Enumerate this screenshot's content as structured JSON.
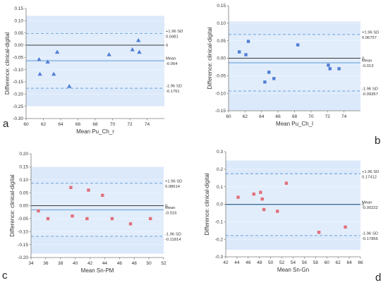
{
  "figure": {
    "panels": [
      "a",
      "b",
      "c",
      "d"
    ]
  },
  "colors": {
    "band": "#dce9fb",
    "bandInner": "#e8f0fc",
    "zero": "#3a3a3a",
    "mean": "#5b9bd5",
    "limit": "#5b9bd5",
    "blue_marker": "#4f7fd6",
    "red_marker": "#e0707a"
  },
  "chart_data": [
    {
      "panel_letter": "a",
      "type": "scatter",
      "marker": "triangle",
      "marker_color": "blue",
      "xlabel": "Mean Pu_Ch_r",
      "ylabel": "Difference: clinical-digital",
      "xlim": [
        60,
        76
      ],
      "ylim": [
        -0.3,
        0.15
      ],
      "xticks": [
        "60",
        "62",
        "64",
        "66",
        "68",
        "70",
        "72",
        "74"
      ],
      "yticks": [
        "0.15",
        "0.10",
        "0.05",
        "0.00",
        "-0.05",
        "-0.10",
        "-0.15",
        "-0.20",
        "-0.25",
        "-0.30"
      ],
      "band": [
        -0.25,
        0.12
      ],
      "lines": {
        "upper": 0.0481,
        "zero": 0,
        "mean": -0.064,
        "lower": -0.1761
      },
      "line_labels": {
        "upper_title": "+1.96 SD",
        "upper_value": "0.0481",
        "zero_value": "0",
        "mean_title": "Mean",
        "mean_value": "-0.064",
        "lower_title": "-1.96 SD",
        "lower_value": "-0.1761"
      },
      "points": [
        {
          "x": 61.5,
          "y": -0.058
        },
        {
          "x": 61.6,
          "y": -0.118
        },
        {
          "x": 62.5,
          "y": -0.068
        },
        {
          "x": 63.2,
          "y": -0.118
        },
        {
          "x": 63.6,
          "y": -0.028
        },
        {
          "x": 65.0,
          "y": -0.168
        },
        {
          "x": 69.6,
          "y": -0.038
        },
        {
          "x": 72.3,
          "y": -0.018
        },
        {
          "x": 73.0,
          "y": 0.02
        },
        {
          "x": 73.1,
          "y": -0.028
        }
      ]
    },
    {
      "panel_letter": "b",
      "type": "scatter",
      "marker": "square",
      "marker_color": "blue",
      "xlabel": "Mean Pu_Ch_l",
      "ylabel": "Difference: clinical-digital",
      "xlim": [
        60,
        76
      ],
      "ylim": [
        -0.15,
        0.15
      ],
      "xticks": [
        "60",
        "62",
        "64",
        "66",
        "68",
        "70",
        "72",
        "74"
      ],
      "yticks": [
        "0.15",
        "0.10",
        "0.05",
        "0.00",
        "-0.05",
        "-0.10",
        "-0.15"
      ],
      "band": [
        -0.15,
        0.105
      ],
      "lines": {
        "upper": 0.06757,
        "zero": 0,
        "mean": -0.013,
        "lower": -0.09357
      },
      "line_labels": {
        "upper_title": "+1.96 SD",
        "upper_value": "0.06757",
        "zero_value": "0",
        "mean_title": "Mean",
        "mean_value": "-0.013",
        "lower_title": "-1.96 SD",
        "lower_value": "-0.09357"
      },
      "points": [
        {
          "x": 61.3,
          "y": 0.018
        },
        {
          "x": 62.1,
          "y": 0.01
        },
        {
          "x": 62.4,
          "y": 0.048
        },
        {
          "x": 64.4,
          "y": -0.068
        },
        {
          "x": 64.9,
          "y": -0.04
        },
        {
          "x": 65.5,
          "y": -0.058
        },
        {
          "x": 68.4,
          "y": 0.038
        },
        {
          "x": 72.1,
          "y": -0.02
        },
        {
          "x": 72.3,
          "y": -0.03
        },
        {
          "x": 73.4,
          "y": -0.03
        }
      ]
    },
    {
      "panel_letter": "c",
      "type": "scatter",
      "marker": "square",
      "marker_color": "red",
      "xlabel": "Mean Sn-PM",
      "ylabel": "Difference: clinical-digital",
      "xlim": [
        34,
        52
      ],
      "ylim": [
        -0.2,
        0.2
      ],
      "xticks": [
        "34",
        "36",
        "38",
        "40",
        "42",
        "44",
        "46",
        "48",
        "50",
        "52"
      ],
      "yticks": [
        "0.20",
        "0.15",
        "0.10",
        "0.05",
        "0.00",
        "-0.05",
        "-0.10",
        "-0.15",
        "-0.20"
      ],
      "band": [
        -0.185,
        0.15
      ],
      "lines": {
        "upper": 0.08614,
        "zero": 0,
        "mean": -0.016,
        "lower": -0.11814
      },
      "line_labels": {
        "upper_title": "+1.96 SD",
        "upper_value": "0.08614",
        "zero_value": "0",
        "mean_title": "Mean",
        "mean_value": "-0.016",
        "lower_title": "-1.96 SD",
        "lower_value": "-0.11814"
      },
      "points": [
        {
          "x": 35.0,
          "y": -0.02
        },
        {
          "x": 36.3,
          "y": -0.05
        },
        {
          "x": 39.4,
          "y": 0.07
        },
        {
          "x": 39.6,
          "y": -0.04
        },
        {
          "x": 41.6,
          "y": -0.05
        },
        {
          "x": 41.8,
          "y": 0.06
        },
        {
          "x": 43.7,
          "y": 0.04
        },
        {
          "x": 45.0,
          "y": -0.05
        },
        {
          "x": 47.5,
          "y": -0.07
        },
        {
          "x": 50.2,
          "y": -0.05
        }
      ]
    },
    {
      "panel_letter": "d",
      "type": "scatter",
      "marker": "square",
      "marker_color": "red",
      "xlabel": "Mean Sn-Gn",
      "ylabel": "Difference: clinical-digital",
      "xlim": [
        42,
        66
      ],
      "ylim": [
        -0.3,
        0.3
      ],
      "xticks": [
        "42",
        "44",
        "46",
        "48",
        "50",
        "52",
        "54",
        "56",
        "58",
        "60",
        "62",
        "64",
        "66"
      ],
      "yticks": [
        "0.3",
        "0.2",
        "0.1",
        "0.0",
        "-0.1",
        "-0.2",
        "-0.3"
      ],
      "band": [
        -0.26,
        0.25
      ],
      "lines": {
        "upper": 0.17412,
        "zero": 0,
        "mean": -0.00222,
        "lower": -0.17856
      },
      "line_labels": {
        "upper_title": "+1.96 SD",
        "upper_value": "0.17412",
        "zero_value": "0",
        "mean_title": "Mean",
        "mean_value": "-0.00222",
        "lower_title": "-1.96 SD",
        "lower_value": "-0.17856"
      },
      "points": [
        {
          "x": 44.2,
          "y": 0.04
        },
        {
          "x": 47.0,
          "y": 0.058
        },
        {
          "x": 48.2,
          "y": 0.068
        },
        {
          "x": 48.5,
          "y": 0.03
        },
        {
          "x": 48.8,
          "y": -0.03
        },
        {
          "x": 51.2,
          "y": -0.04
        },
        {
          "x": 52.8,
          "y": 0.12
        },
        {
          "x": 58.6,
          "y": -0.16
        },
        {
          "x": 63.3,
          "y": -0.13
        }
      ]
    }
  ]
}
